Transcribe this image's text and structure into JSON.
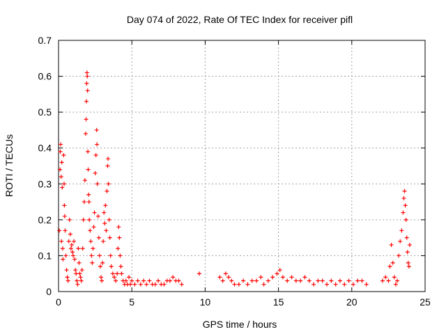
{
  "chart_data": {
    "type": "scatter",
    "title": "Day 074 of 2022, Rate Of TEC Index for receiver pifl",
    "xlabel": "GPS time / hours",
    "ylabel": "ROTI / TECUs",
    "xlim": [
      0,
      25
    ],
    "ylim": [
      0,
      0.7
    ],
    "xticks": [
      0,
      5,
      10,
      15,
      20,
      25
    ],
    "yticks": [
      0,
      0.1,
      0.2,
      0.3,
      0.4,
      0.5,
      0.6,
      0.7
    ],
    "grid": true,
    "marker": "+",
    "color": "#ff0000",
    "series": [
      {
        "points": [
          [
            0.05,
            0.17
          ],
          [
            0.1,
            0.34
          ],
          [
            0.12,
            0.39
          ],
          [
            0.15,
            0.41
          ],
          [
            0.18,
            0.32
          ],
          [
            0.2,
            0.14
          ],
          [
            0.22,
            0.36
          ],
          [
            0.25,
            0.29
          ],
          [
            0.28,
            0.12
          ],
          [
            0.3,
            0.09
          ],
          [
            0.35,
            0.38
          ],
          [
            0.38,
            0.3
          ],
          [
            0.4,
            0.24
          ],
          [
            0.42,
            0.21
          ],
          [
            0.45,
            0.17
          ],
          [
            0.5,
            0.1
          ],
          [
            0.55,
            0.06
          ],
          [
            0.6,
            0.04
          ],
          [
            0.65,
            0.03
          ],
          [
            0.7,
            0.14
          ],
          [
            0.75,
            0.2
          ],
          [
            0.8,
            0.16
          ],
          [
            0.85,
            0.12
          ],
          [
            0.9,
            0.13
          ],
          [
            0.95,
            0.11
          ],
          [
            1.0,
            0.1
          ],
          [
            1.05,
            0.14
          ],
          [
            1.1,
            0.09
          ],
          [
            1.15,
            0.06
          ],
          [
            1.2,
            0.05
          ],
          [
            1.25,
            0.03
          ],
          [
            1.3,
            0.02
          ],
          [
            1.35,
            0.12
          ],
          [
            1.4,
            0.08
          ],
          [
            1.45,
            0.05
          ],
          [
            1.5,
            0.04
          ],
          [
            1.55,
            0.03
          ],
          [
            1.6,
            0.06
          ],
          [
            1.65,
            0.12
          ],
          [
            1.7,
            0.2
          ],
          [
            1.75,
            0.25
          ],
          [
            1.8,
            0.31
          ],
          [
            1.85,
            0.44
          ],
          [
            1.88,
            0.48
          ],
          [
            1.9,
            0.53
          ],
          [
            1.92,
            0.58
          ],
          [
            1.94,
            0.61
          ],
          [
            1.96,
            0.6
          ],
          [
            1.98,
            0.56
          ],
          [
            2.0,
            0.39
          ],
          [
            2.02,
            0.34
          ],
          [
            2.05,
            0.27
          ],
          [
            2.08,
            0.25
          ],
          [
            2.1,
            0.2
          ],
          [
            2.15,
            0.17
          ],
          [
            2.2,
            0.14
          ],
          [
            2.25,
            0.1
          ],
          [
            2.3,
            0.08
          ],
          [
            2.35,
            0.12
          ],
          [
            2.4,
            0.18
          ],
          [
            2.45,
            0.22
          ],
          [
            2.5,
            0.33
          ],
          [
            2.55,
            0.38
          ],
          [
            2.6,
            0.45
          ],
          [
            2.62,
            0.41
          ],
          [
            2.65,
            0.3
          ],
          [
            2.7,
            0.21
          ],
          [
            2.75,
            0.15
          ],
          [
            2.8,
            0.1
          ],
          [
            2.85,
            0.07
          ],
          [
            2.9,
            0.04
          ],
          [
            2.95,
            0.03
          ],
          [
            3.0,
            0.08
          ],
          [
            3.05,
            0.14
          ],
          [
            3.1,
            0.22
          ],
          [
            3.15,
            0.19
          ],
          [
            3.2,
            0.24
          ],
          [
            3.25,
            0.17
          ],
          [
            3.3,
            0.28
          ],
          [
            3.35,
            0.35
          ],
          [
            3.38,
            0.37
          ],
          [
            3.4,
            0.3
          ],
          [
            3.45,
            0.2
          ],
          [
            3.5,
            0.15
          ],
          [
            3.55,
            0.1
          ],
          [
            3.6,
            0.07
          ],
          [
            3.7,
            0.05
          ],
          [
            3.8,
            0.04
          ],
          [
            3.9,
            0.03
          ],
          [
            4.0,
            0.05
          ],
          [
            4.05,
            0.12
          ],
          [
            4.1,
            0.18
          ],
          [
            4.15,
            0.15
          ],
          [
            4.2,
            0.1
          ],
          [
            4.25,
            0.07
          ],
          [
            4.3,
            0.05
          ],
          [
            4.4,
            0.03
          ],
          [
            4.5,
            0.02
          ],
          [
            4.6,
            0.03
          ],
          [
            4.7,
            0.02
          ],
          [
            4.8,
            0.04
          ],
          [
            4.9,
            0.02
          ],
          [
            5.0,
            0.03
          ],
          [
            5.2,
            0.02
          ],
          [
            5.4,
            0.03
          ],
          [
            5.6,
            0.02
          ],
          [
            5.8,
            0.03
          ],
          [
            6.0,
            0.02
          ],
          [
            6.2,
            0.03
          ],
          [
            6.4,
            0.02
          ],
          [
            6.6,
            0.02
          ],
          [
            6.8,
            0.03
          ],
          [
            7.0,
            0.02
          ],
          [
            7.2,
            0.02
          ],
          [
            7.4,
            0.03
          ],
          [
            7.6,
            0.03
          ],
          [
            7.8,
            0.04
          ],
          [
            8.0,
            0.03
          ],
          [
            8.2,
            0.03
          ],
          [
            8.4,
            0.02
          ],
          [
            9.6,
            0.05
          ],
          [
            11.0,
            0.04
          ],
          [
            11.2,
            0.03
          ],
          [
            11.4,
            0.05
          ],
          [
            11.6,
            0.04
          ],
          [
            11.8,
            0.03
          ],
          [
            12.0,
            0.02
          ],
          [
            12.3,
            0.02
          ],
          [
            12.6,
            0.03
          ],
          [
            12.9,
            0.02
          ],
          [
            13.2,
            0.03
          ],
          [
            13.5,
            0.03
          ],
          [
            13.8,
            0.04
          ],
          [
            14.0,
            0.02
          ],
          [
            14.3,
            0.03
          ],
          [
            14.6,
            0.04
          ],
          [
            14.9,
            0.05
          ],
          [
            15.1,
            0.06
          ],
          [
            15.3,
            0.04
          ],
          [
            15.6,
            0.03
          ],
          [
            15.9,
            0.04
          ],
          [
            16.2,
            0.03
          ],
          [
            16.5,
            0.03
          ],
          [
            16.8,
            0.04
          ],
          [
            17.1,
            0.03
          ],
          [
            17.4,
            0.02
          ],
          [
            17.7,
            0.03
          ],
          [
            18.0,
            0.03
          ],
          [
            18.3,
            0.02
          ],
          [
            18.6,
            0.03
          ],
          [
            18.9,
            0.02
          ],
          [
            19.2,
            0.03
          ],
          [
            19.5,
            0.02
          ],
          [
            19.8,
            0.03
          ],
          [
            20.1,
            0.02
          ],
          [
            20.4,
            0.03
          ],
          [
            20.7,
            0.03
          ],
          [
            21.0,
            0.02
          ],
          [
            22.1,
            0.03
          ],
          [
            22.3,
            0.04
          ],
          [
            22.5,
            0.03
          ],
          [
            22.6,
            0.07
          ],
          [
            22.7,
            0.13
          ],
          [
            22.8,
            0.08
          ],
          [
            22.9,
            0.04
          ],
          [
            23.0,
            0.02
          ],
          [
            23.1,
            0.03
          ],
          [
            23.2,
            0.1
          ],
          [
            23.3,
            0.14
          ],
          [
            23.4,
            0.17
          ],
          [
            23.5,
            0.22
          ],
          [
            23.55,
            0.26
          ],
          [
            23.6,
            0.28
          ],
          [
            23.65,
            0.24
          ],
          [
            23.7,
            0.2
          ],
          [
            23.75,
            0.15
          ],
          [
            23.8,
            0.11
          ],
          [
            23.85,
            0.08
          ],
          [
            23.9,
            0.07
          ],
          [
            23.95,
            0.13
          ]
        ]
      }
    ]
  }
}
